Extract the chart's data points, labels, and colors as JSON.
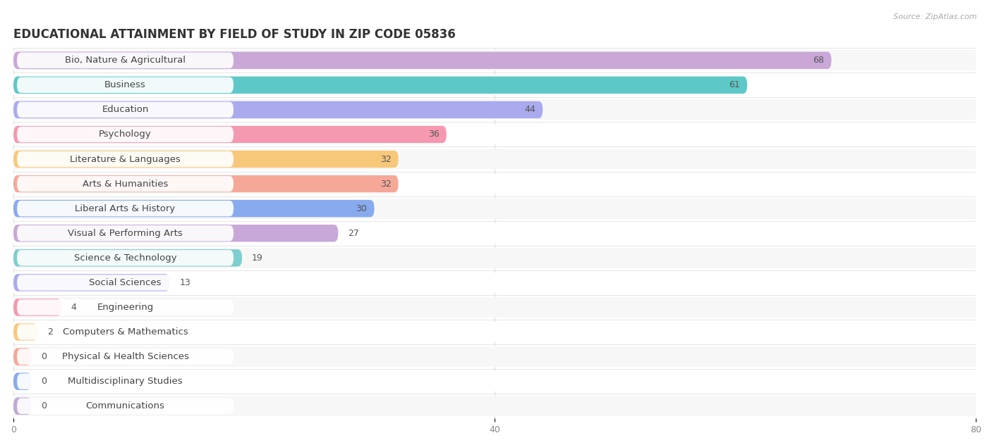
{
  "title": "EDUCATIONAL ATTAINMENT BY FIELD OF STUDY IN ZIP CODE 05836",
  "source": "Source: ZipAtlas.com",
  "categories": [
    "Bio, Nature & Agricultural",
    "Business",
    "Education",
    "Psychology",
    "Literature & Languages",
    "Arts & Humanities",
    "Liberal Arts & History",
    "Visual & Performing Arts",
    "Science & Technology",
    "Social Sciences",
    "Engineering",
    "Computers & Mathematics",
    "Physical & Health Sciences",
    "Multidisciplinary Studies",
    "Communications"
  ],
  "values": [
    68,
    61,
    44,
    36,
    32,
    32,
    30,
    27,
    19,
    13,
    4,
    2,
    0,
    0,
    0
  ],
  "bar_colors": [
    "#c9a8d8",
    "#5ec8c8",
    "#aaaaee",
    "#f599b0",
    "#f8c87a",
    "#f5a898",
    "#88aaee",
    "#c8a8d8",
    "#7dcece",
    "#aaaaee",
    "#f599b0",
    "#f8c87a",
    "#f5a898",
    "#88aaee",
    "#c0a8d8"
  ],
  "row_colors": [
    "#f5f0fa",
    "#f0fafa",
    "#f0f0fa",
    "#fdf0f5",
    "#fdf8f0",
    "#fdf5f2",
    "#f0f4fd",
    "#f8f0fc",
    "#f0fafa",
    "#f0f0fa",
    "#fdf0f5",
    "#fdf8f0",
    "#fdf5f2",
    "#f0f4fd",
    "#f8f0fc"
  ],
  "xlim": [
    0,
    80
  ],
  "bg_color": "#ffffff",
  "title_fontsize": 12,
  "label_fontsize": 9.5,
  "value_fontsize": 9
}
